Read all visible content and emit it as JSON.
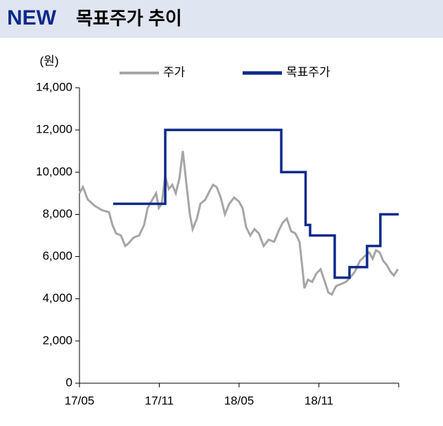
{
  "chart_data": {
    "type": "line",
    "badge": "NEW",
    "title": "목표주가 추이",
    "y_unit": "(원)",
    "xlim": [
      0,
      24
    ],
    "xticks": [
      {
        "value": 0,
        "label": "17/05"
      },
      {
        "value": 6,
        "label": "17/11"
      },
      {
        "value": 12,
        "label": "18/05"
      },
      {
        "value": 18,
        "label": "18/11"
      }
    ],
    "ylim": [
      0,
      14000
    ],
    "yticks": [
      0,
      {
        "value": 2000,
        "label": "2,000"
      },
      {
        "value": 4000,
        "label": "4,000"
      },
      {
        "value": 6000,
        "label": "6,000"
      },
      {
        "value": 8000,
        "label": "8,000"
      },
      {
        "value": 10000,
        "label": "10,000"
      },
      {
        "value": 12000,
        "label": "12,000"
      },
      {
        "value": 14000,
        "label": "14,000"
      }
    ],
    "series": [
      {
        "name": "주가",
        "color": "#a6a6a6",
        "x": [
          0,
          0.26,
          0.63,
          1.16,
          1.69,
          2.22,
          2.48,
          2.75,
          3.12,
          3.44,
          3.65,
          4.07,
          4.49,
          4.86,
          5.13,
          5.39,
          5.76,
          5.97,
          6.18,
          6.45,
          6.71,
          6.98,
          7.24,
          7.51,
          7.77,
          8.03,
          8.3,
          8.51,
          8.83,
          9.09,
          9.46,
          9.78,
          10.04,
          10.31,
          10.62,
          10.94,
          11.26,
          11.63,
          12.0,
          12.26,
          12.53,
          12.84,
          13.16,
          13.48,
          13.85,
          14.22,
          14.64,
          14.96,
          15.27,
          15.59,
          15.91,
          16.23,
          16.54,
          16.75,
          16.91,
          17.18,
          17.49,
          17.81,
          18.13,
          18.45,
          18.71,
          18.97,
          19.29,
          19.66,
          20.03,
          20.35,
          20.72,
          21.09,
          21.41,
          21.78,
          22.04,
          22.3,
          22.57,
          22.83,
          23.1,
          23.36,
          23.63,
          23.94
        ],
        "values": [
          9000,
          9300,
          8700,
          8400,
          8200,
          8100,
          7500,
          7100,
          7000,
          6500,
          6600,
          6900,
          7000,
          7500,
          8300,
          8600,
          9000,
          8300,
          8500,
          9800,
          9200,
          9400,
          9000,
          9700,
          11000,
          9500,
          8000,
          7300,
          7800,
          8500,
          8700,
          9100,
          9400,
          9300,
          8800,
          8000,
          8500,
          8800,
          8600,
          8300,
          7400,
          7000,
          7300,
          7100,
          6500,
          6800,
          6700,
          7200,
          7600,
          7800,
          7200,
          7100,
          6700,
          5500,
          4500,
          4900,
          4800,
          5200,
          5400,
          4800,
          4300,
          4200,
          4600,
          4700,
          4800,
          5000,
          5300,
          5800,
          6000,
          6200,
          5900,
          6300,
          6200,
          5800,
          5600,
          5300,
          5100,
          5400
        ]
      },
      {
        "name": "목표주가",
        "color": "#0d2a8a",
        "x": [
          2.54,
          6.45,
          6.45,
          15.17,
          15.17,
          17.0,
          17.0,
          17.34,
          17.34,
          19.19,
          19.19,
          20.3,
          20.3,
          21.62,
          21.62,
          22.62,
          22.62,
          24
        ],
        "values": [
          8500,
          8500,
          12000,
          12000,
          10000,
          10000,
          7500,
          7500,
          7000,
          7000,
          5000,
          5000,
          5500,
          5500,
          6500,
          6500,
          8000,
          8000
        ]
      }
    ]
  }
}
